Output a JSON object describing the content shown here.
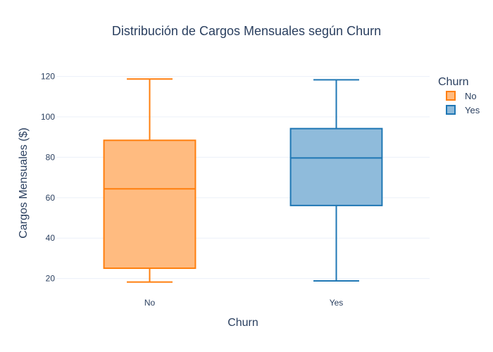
{
  "chart_data": {
    "type": "box",
    "title": "Distribución de Cargos Mensuales según Churn",
    "xlabel": "Churn",
    "ylabel": "Cargos Mensuales ($)",
    "categories": [
      "No",
      "Yes"
    ],
    "ylim": [
      15,
      123
    ],
    "yticks": [
      20,
      40,
      60,
      80,
      100,
      120
    ],
    "grid": true,
    "legend": {
      "title": "Churn",
      "position": "top-right"
    },
    "series": [
      {
        "name": "No",
        "category": "No",
        "color": "#ff7f0e",
        "fill": "#ffbb80",
        "min": 18.25,
        "q1": 25.1,
        "median": 64.4,
        "q3": 88.4,
        "max": 118.75
      },
      {
        "name": "Yes",
        "category": "Yes",
        "color": "#1f77b4",
        "fill": "#8fbbdb",
        "min": 18.85,
        "q1": 56.15,
        "median": 79.65,
        "q3": 94.2,
        "max": 118.35
      }
    ]
  }
}
